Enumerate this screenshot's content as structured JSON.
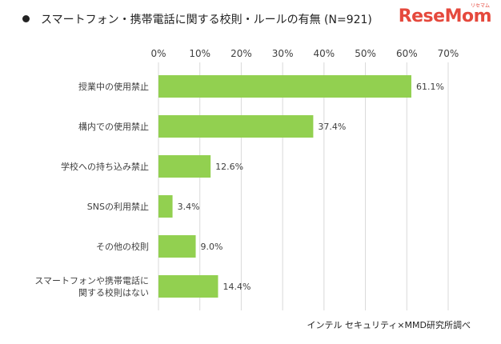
{
  "title": "スマートフォン・携帯電話に関する校則・ルールの有無 (N=921)",
  "logo": {
    "text": "ReseMom",
    "ruby": "リセマム"
  },
  "source": "インテル セキュリティ×MMD研究所調べ",
  "colors": {
    "bar": "#92d050",
    "grid": "#d9d9d9",
    "text": "#404040"
  },
  "chart_data": {
    "type": "bar",
    "orientation": "horizontal",
    "categories": [
      [
        "授業中の使用禁止"
      ],
      [
        "構内での使用禁止"
      ],
      [
        "学校への持ち込み禁止"
      ],
      [
        "SNSの利用禁止"
      ],
      [
        "その他の校則"
      ],
      [
        "スマートフォンや携帯電話に",
        "関する校則はない"
      ]
    ],
    "values": [
      61.1,
      37.4,
      12.6,
      3.4,
      9.0,
      14.4
    ],
    "value_labels": [
      "61.1%",
      "37.4%",
      "12.6%",
      "3.4%",
      "9.0%",
      "14.4%"
    ],
    "xticks": [
      0,
      10,
      20,
      30,
      40,
      50,
      60,
      70
    ],
    "xtick_labels": [
      "0%",
      "10%",
      "20%",
      "30%",
      "40%",
      "50%",
      "60%",
      "70%"
    ],
    "xlim": [
      0,
      70
    ],
    "grid": true,
    "xaxis_position": "top"
  }
}
